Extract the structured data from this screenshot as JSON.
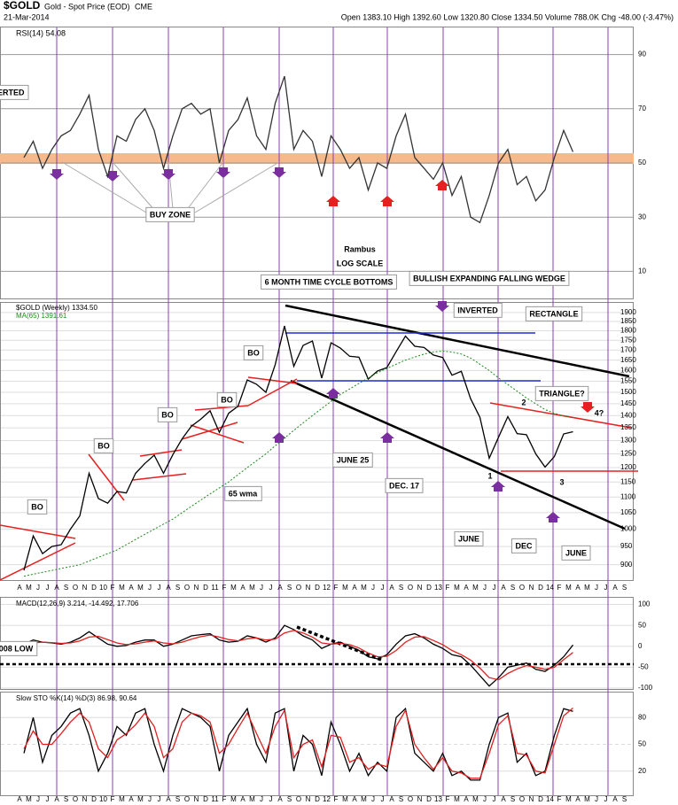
{
  "header": {
    "symbol": "$GOLD",
    "name": "Gold - Spot Price (EOD)",
    "exchange": "CME",
    "date": "21-Mar-2014",
    "quote": "Open 1383.10 High 1392.60 Low 1320.80 Close 1334.50 Volume 788.0K Chg -48.00 (-3.47%)"
  },
  "chart_data": [
    {
      "type": "line",
      "title": "RSI(14) 54.08",
      "ylim": [
        0,
        100
      ],
      "yticks": [
        90,
        70,
        50,
        30,
        10
      ],
      "series": [
        {
          "color": "#333333",
          "values": [
            52,
            58,
            48,
            55,
            60,
            62,
            68,
            75,
            55,
            45,
            60,
            58,
            66,
            70,
            62,
            48,
            60,
            70,
            72,
            68,
            70,
            50,
            62,
            66,
            74,
            60,
            55,
            72,
            82,
            55,
            62,
            58,
            45,
            60,
            55,
            48,
            52,
            40,
            50,
            48,
            60,
            68,
            52,
            48,
            44,
            50,
            38,
            45,
            30,
            28,
            38,
            50,
            55,
            42,
            45,
            36,
            40,
            52,
            62,
            54.08,
            null,
            null,
            null,
            null,
            null,
            null
          ]
        }
      ]
    },
    {
      "type": "line",
      "log_scale": true,
      "ylim": [
        860,
        1955
      ],
      "yticks": [
        900,
        950,
        1000,
        1050,
        1100,
        1150,
        1200,
        1250,
        1300,
        1350,
        1400,
        1450,
        1500,
        1550,
        1600,
        1650,
        1700,
        1750,
        1800,
        1850,
        1900
      ],
      "categories": [
        "A",
        "M",
        "J",
        "J",
        "A",
        "S",
        "O",
        "N",
        "D",
        "10",
        "F",
        "M",
        "A",
        "M",
        "J",
        "J",
        "A",
        "S",
        "O",
        "N",
        "D",
        "11",
        "F",
        "M",
        "A",
        "M",
        "J",
        "J",
        "A",
        "S",
        "O",
        "N",
        "D",
        "12",
        "F",
        "M",
        "A",
        "M",
        "J",
        "J",
        "A",
        "S",
        "O",
        "N",
        "D",
        "13",
        "F",
        "M",
        "A",
        "M",
        "J",
        "J",
        "A",
        "S",
        "O",
        "N",
        "D",
        "14",
        "F",
        "M",
        "A",
        "M",
        "J",
        "J",
        "A",
        "S"
      ],
      "series": [
        {
          "name": "$GOLD (Weekly) 1334.50",
          "color": "#000000",
          "values": [
            885,
            980,
            930,
            950,
            955,
            1000,
            1040,
            1180,
            1095,
            1080,
            1118,
            1113,
            1180,
            1215,
            1245,
            1180,
            1247,
            1307,
            1357,
            1385,
            1420,
            1332,
            1410,
            1439,
            1556,
            1536,
            1500,
            1628,
            1826,
            1620,
            1723,
            1746,
            1564,
            1737,
            1710,
            1669,
            1664,
            1560,
            1598,
            1614,
            1692,
            1772,
            1719,
            1713,
            1675,
            1663,
            1578,
            1596,
            1472,
            1393,
            1234,
            1313,
            1396,
            1327,
            1323,
            1250,
            1202,
            1240,
            1326,
            1334.5,
            null,
            null,
            null,
            null,
            null,
            null
          ]
        },
        {
          "name": "MA(65) 1391.61",
          "color": "#1a8a1a",
          "values": [
            870,
            875,
            880,
            885,
            890,
            895,
            900,
            910,
            920,
            930,
            940,
            955,
            970,
            985,
            1000,
            1015,
            1030,
            1050,
            1070,
            1090,
            1110,
            1130,
            1150,
            1175,
            1200,
            1225,
            1250,
            1280,
            1310,
            1340,
            1370,
            1400,
            1430,
            1460,
            1490,
            1515,
            1540,
            1565,
            1590,
            1610,
            1630,
            1650,
            1665,
            1680,
            1690,
            1695,
            1690,
            1680,
            1660,
            1630,
            1600,
            1565,
            1535,
            1505,
            1475,
            1450,
            1425,
            1410,
            1398,
            1391.61,
            null,
            null,
            null,
            null,
            null,
            null
          ]
        }
      ]
    },
    {
      "type": "line",
      "title": "MACD(12,26,9) 3.214, -14.492, 17.706",
      "ylim": [
        -102,
        116
      ],
      "yticks": [
        100,
        50,
        0,
        -50,
        -100
      ],
      "series": [
        {
          "color": "#000000",
          "values": [
            5,
            15,
            10,
            8,
            5,
            10,
            20,
            35,
            20,
            5,
            0,
            2,
            10,
            15,
            15,
            0,
            5,
            15,
            25,
            28,
            30,
            15,
            10,
            12,
            25,
            20,
            10,
            20,
            50,
            40,
            25,
            15,
            -5,
            5,
            10,
            0,
            -10,
            -25,
            -30,
            -20,
            5,
            25,
            30,
            20,
            5,
            -5,
            -20,
            -25,
            -45,
            -70,
            -95,
            -75,
            -50,
            -45,
            -40,
            -55,
            -60,
            -45,
            -25,
            3.214,
            null,
            null,
            null,
            null,
            null,
            null
          ]
        },
        {
          "color": "#e02020",
          "values": [
            2,
            8,
            10,
            9,
            7,
            8,
            13,
            22,
            24,
            16,
            8,
            4,
            6,
            10,
            13,
            8,
            6,
            10,
            17,
            23,
            27,
            22,
            16,
            13,
            18,
            20,
            15,
            17,
            32,
            38,
            32,
            22,
            8,
            5,
            7,
            4,
            -4,
            -16,
            -25,
            -24,
            -10,
            10,
            22,
            23,
            14,
            4,
            -10,
            -20,
            -33,
            -52,
            -75,
            -80,
            -65,
            -54,
            -46,
            -50,
            -55,
            -50,
            -32,
            -14.492,
            null,
            null,
            null,
            null,
            null,
            null
          ]
        }
      ]
    },
    {
      "type": "line",
      "title": "Slow STO %K(14) %D(3) 86.98, 90.64",
      "ylim": [
        -7,
        108
      ],
      "yticks": [
        80,
        50,
        20
      ],
      "categories": [
        "A",
        "M",
        "J",
        "J",
        "A",
        "S",
        "O",
        "N",
        "D",
        "10",
        "F",
        "M",
        "A",
        "M",
        "J",
        "J",
        "A",
        "S",
        "O",
        "N",
        "D",
        "11",
        "F",
        "M",
        "A",
        "M",
        "J",
        "J",
        "A",
        "S",
        "O",
        "N",
        "D",
        "12",
        "F",
        "M",
        "A",
        "M",
        "J",
        "J",
        "A",
        "S",
        "O",
        "N",
        "D",
        "13",
        "F",
        "M",
        "A",
        "M",
        "J",
        "J",
        "A",
        "S",
        "O",
        "N",
        "D",
        "14",
        "F",
        "M",
        "A",
        "M",
        "J",
        "J",
        "A",
        "S"
      ],
      "series": [
        {
          "color": "#000000",
          "values": [
            40,
            80,
            30,
            60,
            70,
            85,
            90,
            60,
            20,
            40,
            70,
            60,
            85,
            90,
            50,
            20,
            60,
            90,
            85,
            80,
            70,
            20,
            60,
            75,
            90,
            50,
            30,
            85,
            90,
            20,
            60,
            50,
            15,
            75,
            50,
            20,
            40,
            15,
            30,
            20,
            80,
            90,
            40,
            30,
            20,
            40,
            15,
            20,
            10,
            10,
            50,
            80,
            85,
            30,
            40,
            15,
            20,
            60,
            90,
            86.98,
            null,
            null,
            null,
            null,
            null,
            null
          ]
        },
        {
          "color": "#e02020",
          "values": [
            45,
            65,
            50,
            50,
            62,
            75,
            85,
            75,
            45,
            35,
            55,
            62,
            72,
            85,
            70,
            35,
            45,
            75,
            85,
            82,
            75,
            40,
            50,
            68,
            85,
            62,
            40,
            70,
            88,
            35,
            50,
            55,
            25,
            60,
            58,
            30,
            35,
            22,
            28,
            25,
            70,
            88,
            50,
            35,
            22,
            35,
            20,
            18,
            12,
            12,
            40,
            72,
            82,
            40,
            38,
            20,
            18,
            50,
            82,
            90.64,
            null,
            null,
            null,
            null,
            null,
            null
          ]
        }
      ]
    }
  ],
  "annotations": [
    "INVERTED",
    "BUY ZONE",
    "Rambus",
    "LOG SCALE",
    "6 MONTH TIME CYCLE BOTTOMS",
    "BULLISH EXPANDING FALLING WEDGE",
    "INVERTED",
    "RECTANGLE",
    "TRIANGLE?",
    "4?",
    "BO",
    "BO",
    "BO",
    "BO",
    "BO",
    "65 wma",
    "JUNE 25",
    "DEC. 17",
    "JUNE",
    "DEC",
    "JUNE",
    "1",
    "2",
    "3",
    "008 LOW"
  ]
}
